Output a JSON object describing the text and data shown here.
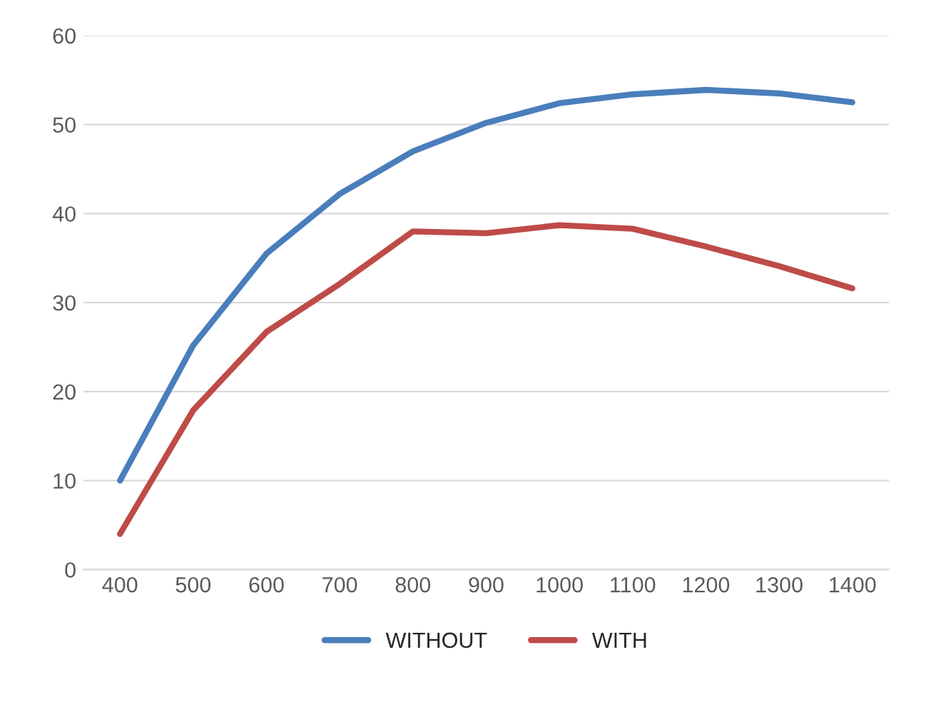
{
  "chart_data": {
    "type": "line",
    "categories": [
      "400",
      "500",
      "600",
      "700",
      "800",
      "900",
      "1000",
      "1100",
      "1200",
      "1300",
      "1400"
    ],
    "series": [
      {
        "name": "WITHOUT",
        "color": "#4a7ebb",
        "values": [
          10,
          25.2,
          35.5,
          42.2,
          47,
          50.2,
          52.4,
          53.4,
          53.9,
          53.5,
          52.5
        ]
      },
      {
        "name": "WITH",
        "color": "#be4b48",
        "values": [
          4,
          17.9,
          26.7,
          32.1,
          38,
          37.8,
          38.7,
          38.3,
          36.3,
          34.1,
          31.6
        ]
      }
    ],
    "ylim": [
      0,
      60
    ],
    "yticks": [
      0,
      10,
      20,
      30,
      40,
      50,
      60
    ],
    "grid": "y",
    "legend": "bottom",
    "marker": "none",
    "line_style": "solid"
  }
}
